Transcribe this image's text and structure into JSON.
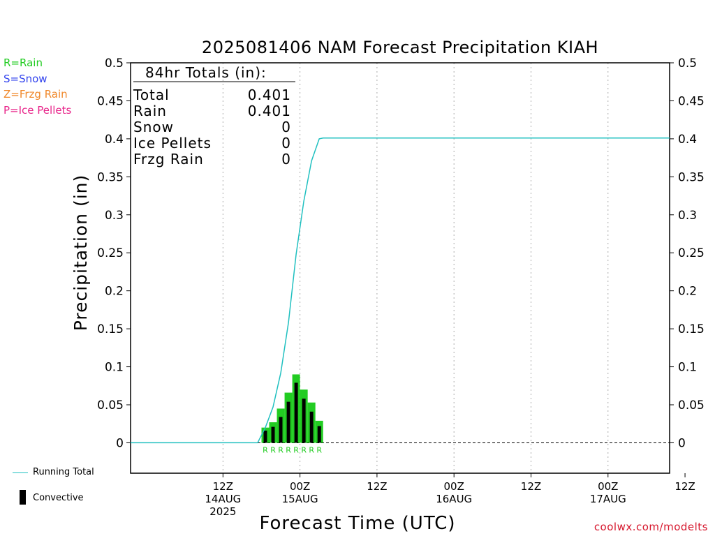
{
  "precip_type_legend": [
    {
      "text": "R=Rain",
      "color": "#22cc22"
    },
    {
      "text": "S=Snow",
      "color": "#3344ee"
    },
    {
      "text": "Z=Frzg Rain",
      "color": "#f0882a"
    },
    {
      "text": "P=Ice Pellets",
      "color": "#e8258a"
    }
  ],
  "series_legend": {
    "running_total": "Running Total",
    "convective": "Convective"
  },
  "credit": "coolwx.com/modelts",
  "colors": {
    "running_total": "#20c0c0",
    "bar_rain": "#22cc22",
    "bar_convective": "#000000",
    "type_label": "#22cc22",
    "grid": "#aaaaaa"
  },
  "chart_data": {
    "type": "bar",
    "title": "2025081406 NAM Forecast Precipitation KIAH",
    "xlabel": "Forecast Time (UTC)",
    "ylabel": "Precipitation (in)",
    "ylim": [
      -0.04,
      0.5
    ],
    "yticks": [
      0,
      0.05,
      0.1,
      0.15,
      0.2,
      0.25,
      0.3,
      0.35,
      0.4,
      0.45,
      0.5
    ],
    "ytick_labels": [
      "0",
      "0.05",
      "0.1",
      "0.15",
      "0.2",
      "0.25",
      "0.3",
      "0.35",
      "0.4",
      "0.45",
      "0.5"
    ],
    "xlim_hours": [
      -24,
      46
    ],
    "xticks": [
      {
        "hour": -12,
        "label": [
          "12Z",
          "14AUG",
          "2025"
        ]
      },
      {
        "hour": -2,
        "label": [
          "00Z",
          "15AUG"
        ]
      },
      {
        "hour": 8,
        "label": [
          "12Z"
        ]
      },
      {
        "hour": 18,
        "label": [
          "00Z",
          "16AUG"
        ]
      },
      {
        "hour": 28,
        "label": [
          "12Z"
        ]
      },
      {
        "hour": 38,
        "label": [
          "00Z",
          "17AUG"
        ]
      },
      {
        "hour": 48,
        "label": [
          "12Z"
        ]
      }
    ],
    "grid": "vertical dotted at x ticks",
    "totals_box": {
      "heading": "84hr Totals (in):",
      "rows": [
        {
          "label": "Total",
          "value": "0.401"
        },
        {
          "label": "Rain",
          "value": "0.401"
        },
        {
          "label": "Snow",
          "value": "0"
        },
        {
          "label": "Ice Pellets",
          "value": "0"
        },
        {
          "label": "Frzg Rain",
          "value": "0"
        }
      ]
    },
    "bars": {
      "hours": [
        -6.5,
        -5.5,
        -4.5,
        -3.5,
        -2.5,
        -1.5,
        -0.5,
        0.5
      ],
      "total_values": [
        0.02,
        0.027,
        0.045,
        0.066,
        0.09,
        0.07,
        0.053,
        0.029
      ],
      "convective_values": [
        0.016,
        0.021,
        0.034,
        0.054,
        0.079,
        0.058,
        0.041,
        0.022
      ],
      "type_labels": [
        "R",
        "R",
        "R",
        "R",
        "R",
        "R",
        "R",
        "R"
      ]
    },
    "running_total": {
      "hours": [
        -24,
        -7.5,
        -6.5,
        -5.5,
        -4.5,
        -3.5,
        -2.5,
        -1.5,
        -0.5,
        0.5,
        1.0,
        46
      ],
      "values": [
        0,
        0,
        0.02,
        0.047,
        0.092,
        0.158,
        0.248,
        0.318,
        0.371,
        0.4,
        0.401,
        0.401
      ]
    }
  }
}
